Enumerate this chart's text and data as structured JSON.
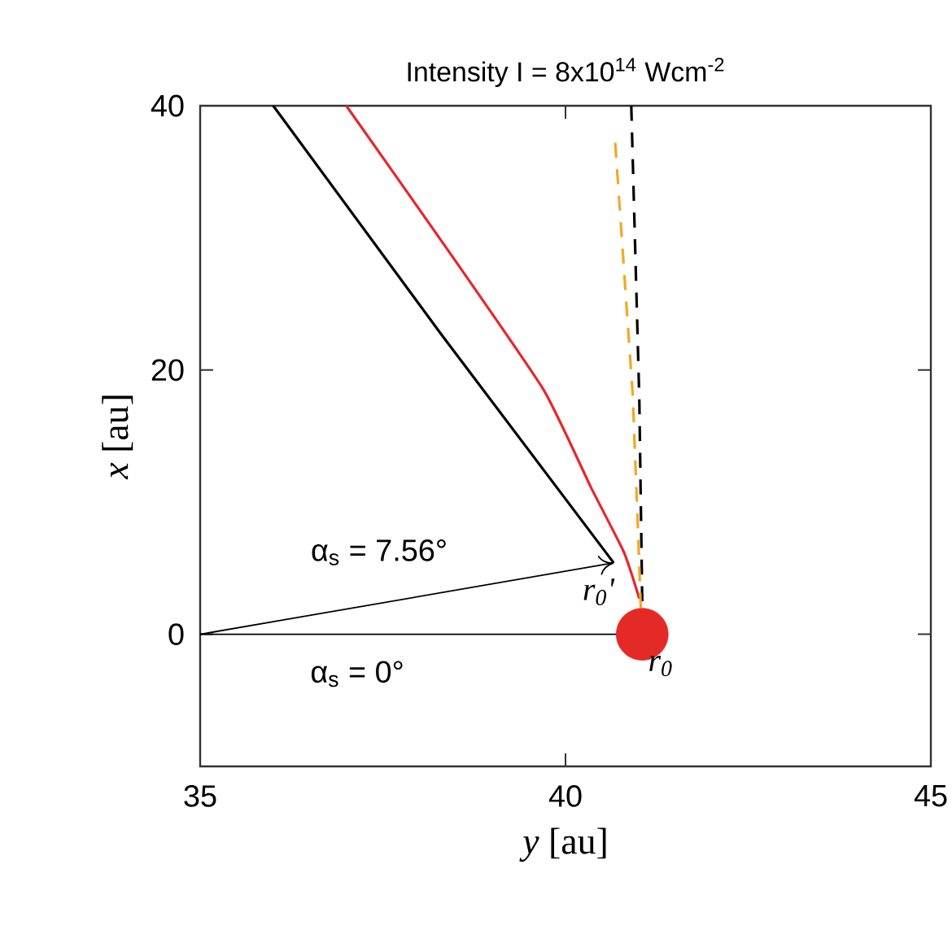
{
  "chart_data": {
    "type": "line",
    "title": "Intensity I = 8x10$^{14}$ Wcm$^{-2}$",
    "xlabel": "*y* [au]",
    "ylabel": "*x* [au]",
    "xlim": [
      35,
      45
    ],
    "xticks": [
      35,
      40,
      45
    ],
    "ylim": [
      -10,
      40
    ],
    "yticks": [
      0,
      20,
      40
    ],
    "grid": false,
    "series": [
      {
        "type": "scatter",
        "marker": "circle",
        "color": "#e32a27",
        "x": [
          41.05
        ],
        "values": [
          0
        ]
      },
      {
        "color": "#000000",
        "x": [
          36.0,
          38.3,
          40.66
        ],
        "values": [
          40,
          22.7,
          5.4
        ]
      },
      {
        "color": "#e8262a",
        "x": [
          37.0,
          38.4,
          39.7,
          40.35,
          40.8,
          41.01
        ],
        "values": [
          40,
          29,
          18.5,
          11.1,
          6.2,
          2.7
        ]
      },
      {
        "color": "#000000",
        "line_style": "dashed",
        "x": [
          40.9,
          41.01,
          41.05
        ],
        "values": [
          40,
          17.8,
          2.5
        ]
      },
      {
        "color": "#f5a623",
        "line_style": "dashed",
        "x": [
          40.68,
          40.92,
          40.99,
          41.03
        ],
        "values": [
          37.2,
          18.1,
          8.2,
          2
        ]
      },
      {
        "color": "#000000",
        "x": [
          35,
          40.66
        ],
        "values": [
          0,
          5.4
        ]
      },
      {
        "color": "#000000",
        "x": [
          35,
          41.05
        ],
        "values": [
          0,
          0
        ]
      }
    ],
    "annotations": [
      "α$_{s}$ = 7.56°",
      "α$_{s}$ = 0°",
      "r$_{0}$'",
      "r$_{0}$"
    ]
  }
}
